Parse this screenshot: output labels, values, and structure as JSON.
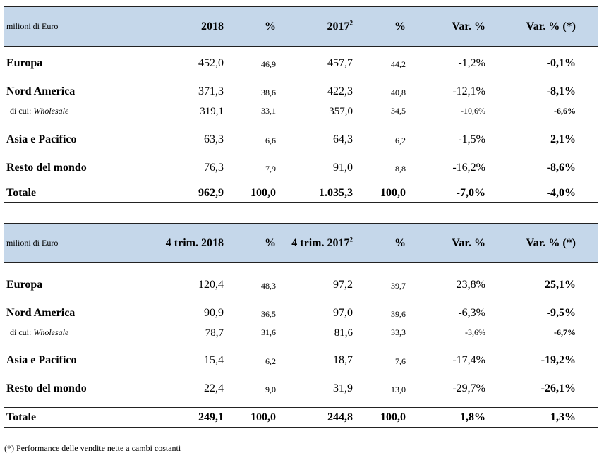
{
  "table_annual": {
    "header": {
      "unit": "milioni di Euro",
      "col1": "2018",
      "col2": "%",
      "col3": "2017",
      "col3_sup": "2",
      "col4": "%",
      "col5": "Var. %",
      "col6": "Var. % (*)"
    },
    "rows": [
      {
        "label": "Europa",
        "v1": "452,0",
        "p1": "46,9",
        "v2": "457,7",
        "p2": "44,2",
        "var": "-1,2%",
        "varc": "-0,1%"
      },
      {
        "label": "Nord America",
        "v1": "371,3",
        "p1": "38,6",
        "v2": "422,3",
        "p2": "40,8",
        "var": "-12,1%",
        "varc": "-8,1%"
      },
      {
        "label_prefix": "di cui:",
        "label": "Wholesale",
        "v1": "319,1",
        "p1": "33,1",
        "v2": "357,0",
        "p2": "34,5",
        "var": "-10,6%",
        "varc": "-6,6%"
      },
      {
        "label": "Asia e Pacifico",
        "v1": "63,3",
        "p1": "6,6",
        "v2": "64,3",
        "p2": "6,2",
        "var": "-1,5%",
        "varc": "2,1%"
      },
      {
        "label": "Resto del mondo",
        "v1": "76,3",
        "p1": "7,9",
        "v2": "91,0",
        "p2": "8,8",
        "var": "-16,2%",
        "varc": "-8,6%"
      }
    ],
    "total": {
      "label": "Totale",
      "v1": "962,9",
      "p1": "100,0",
      "v2": "1.035,3",
      "p2": "100,0",
      "var": "-7,0%",
      "varc": "-4,0%"
    }
  },
  "table_quarter": {
    "header": {
      "unit": "milioni di Euro",
      "col1": "4 trim. 2018",
      "col2": "%",
      "col3": "4 trim. 2017",
      "col3_sup": "2",
      "col4": "%",
      "col5": "Var. %",
      "col6": "Var. % (*)"
    },
    "rows": [
      {
        "label": "Europa",
        "v1": "120,4",
        "p1": "48,3",
        "v2": "97,2",
        "p2": "39,7",
        "var": "23,8%",
        "varc": "25,1%"
      },
      {
        "label": "Nord America",
        "v1": "90,9",
        "p1": "36,5",
        "v2": "97,0",
        "p2": "39,6",
        "var": "-6,3%",
        "varc": "-9,5%"
      },
      {
        "label_prefix": "di cui:",
        "label": "Wholesale",
        "v1": "78,7",
        "p1": "31,6",
        "v2": "81,6",
        "p2": "33,3",
        "var": "-3,6%",
        "varc": "-6,7%"
      },
      {
        "label": "Asia e Pacifico",
        "v1": "15,4",
        "p1": "6,2",
        "v2": "18,7",
        "p2": "7,6",
        "var": "-17,4%",
        "varc": "-19,2%"
      },
      {
        "label": "Resto del mondo",
        "v1": "22,4",
        "p1": "9,0",
        "v2": "31,9",
        "p2": "13,0",
        "var": "-29,7%",
        "varc": "-26,1%"
      }
    ],
    "total": {
      "label": "Totale",
      "v1": "249,1",
      "p1": "100,0",
      "v2": "244,8",
      "p2": "100,0",
      "var": "1,8%",
      "varc": "1,3%"
    }
  },
  "footnote": "(*) Performance delle vendite nette a cambi costanti"
}
